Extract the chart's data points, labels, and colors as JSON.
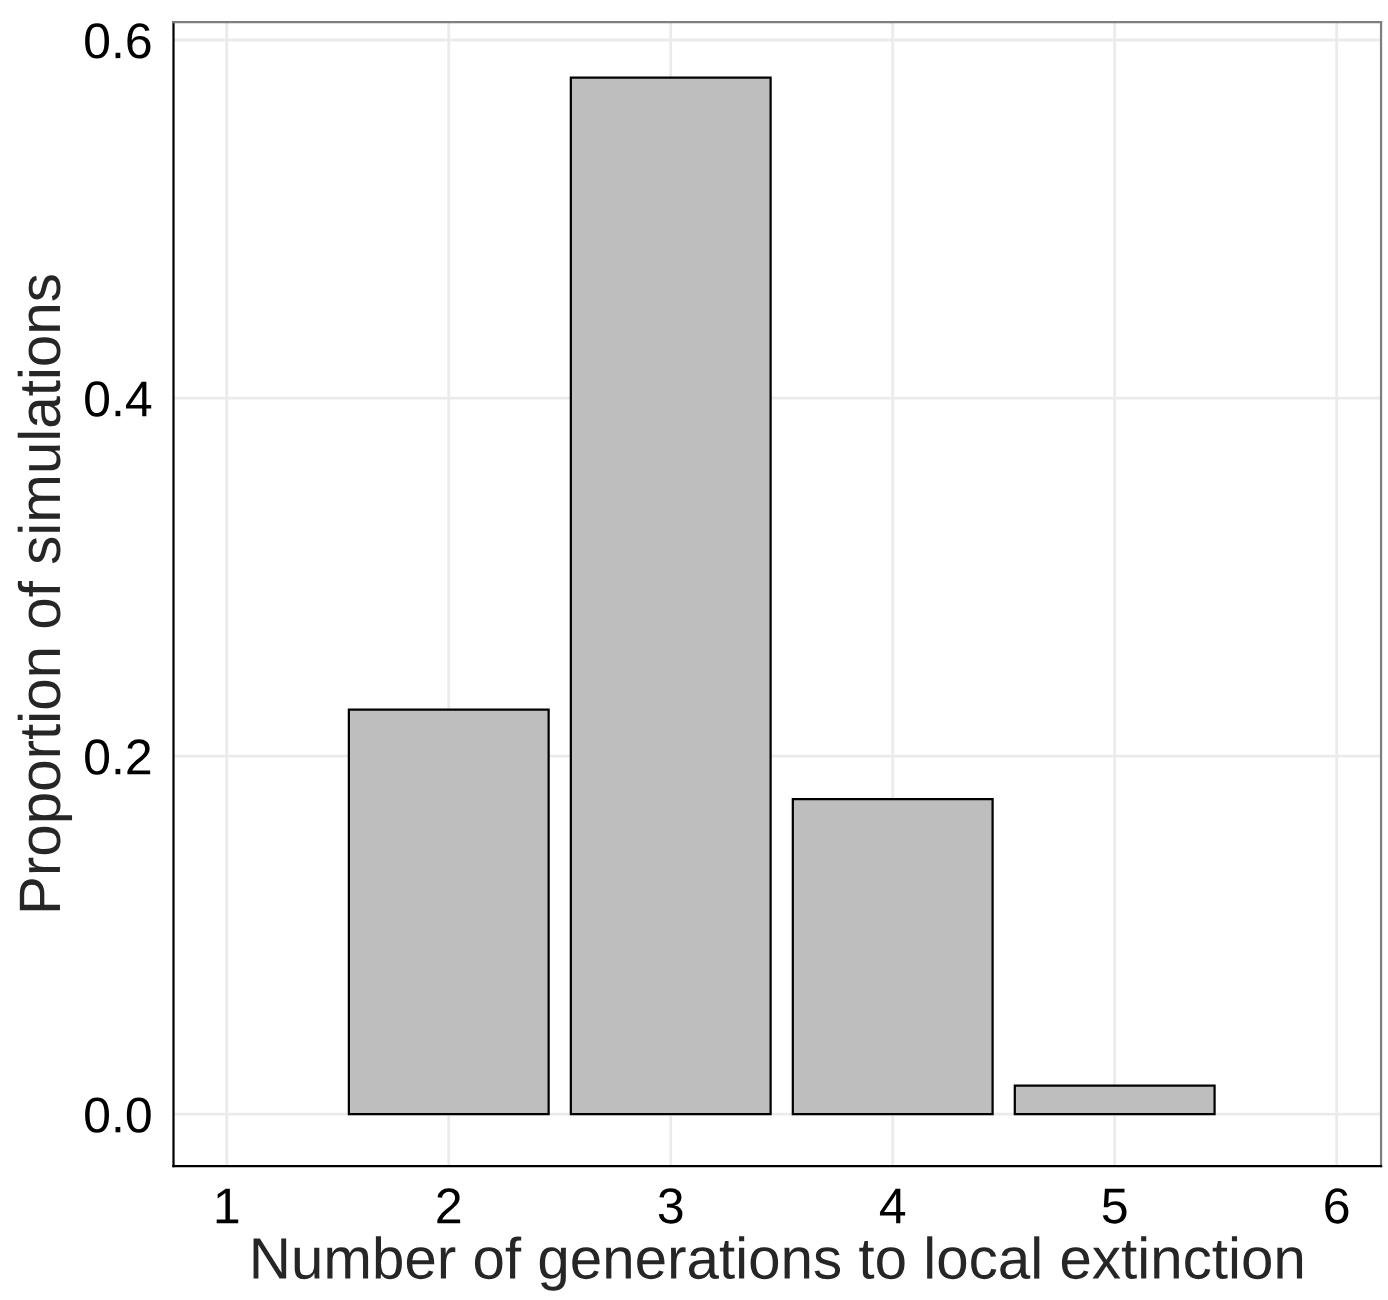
{
  "chart_data": {
    "type": "bar",
    "xlabel": "Number of generations to local extinction",
    "ylabel": "Proportion of simulations",
    "x": [
      2,
      3,
      4,
      5
    ],
    "values": [
      0.226,
      0.579,
      0.176,
      0.016
    ],
    "color": "#bebebe",
    "xlim": [
      0.76,
      6.2
    ],
    "xticks": [
      1,
      2,
      3,
      4,
      5,
      6
    ],
    "ylim": [
      -0.029,
      0.61
    ],
    "yticks": [
      {
        "value": 0,
        "label": "0.0"
      },
      {
        "value": 0.2,
        "label": "0.2"
      },
      {
        "value": 0.4,
        "label": "0.4"
      },
      {
        "value": 0.6,
        "label": "0.6"
      }
    ],
    "grid": true
  }
}
